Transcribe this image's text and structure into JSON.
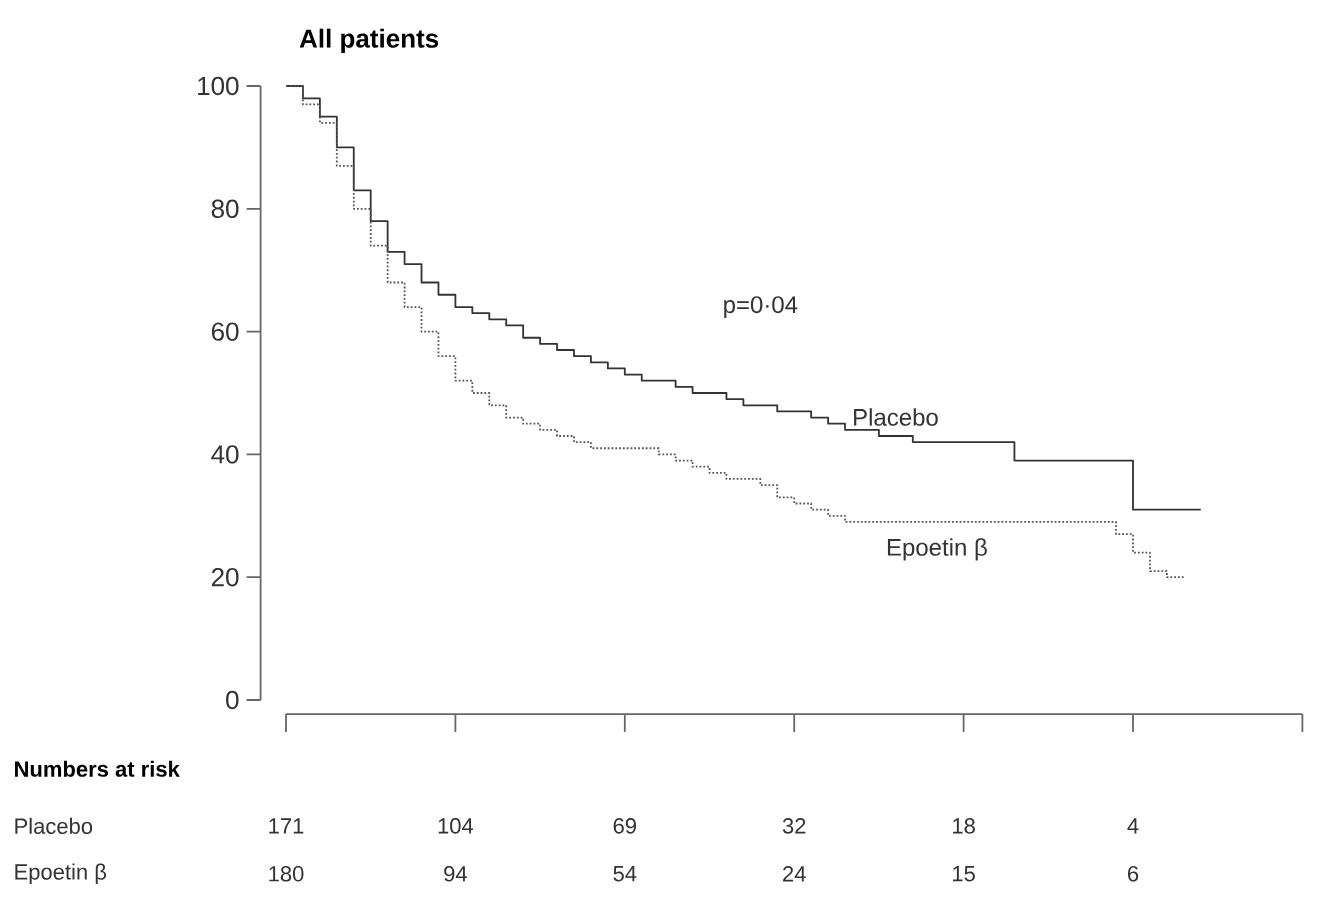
{
  "chart_data": {
    "type": "step",
    "title": "All patients",
    "categories": [
      null,
      null,
      null,
      null,
      null,
      null,
      null,
      null,
      null,
      null,
      null,
      null,
      null,
      null,
      null,
      null,
      null,
      null,
      null,
      null,
      null,
      null,
      null,
      null,
      null,
      null,
      null,
      null,
      null,
      null,
      null,
      null,
      null,
      null,
      null,
      null,
      null,
      null,
      null,
      null,
      null,
      null,
      null,
      null,
      null,
      null,
      null,
      null,
      null,
      null,
      null,
      null,
      null,
      null,
      null
    ],
    "ylim": [
      0,
      100
    ],
    "yticks": [
      0,
      20,
      40,
      60,
      80,
      100
    ],
    "series": [
      {
        "name": "Placebo",
        "color": "#333333",
        "line_style": "solid",
        "values": [
          100,
          98,
          95,
          90,
          83,
          78,
          73,
          71,
          68,
          66,
          64,
          63,
          62,
          61,
          59,
          58,
          57,
          56,
          55,
          54,
          53,
          52,
          52,
          51,
          50,
          50,
          49,
          48,
          48,
          47,
          47,
          46,
          45,
          44,
          44,
          43,
          43,
          42,
          42,
          42,
          42,
          42,
          42,
          39,
          39,
          39,
          39,
          39,
          39,
          39,
          31,
          31,
          31,
          31,
          31
        ]
      },
      {
        "name": "Epoetin β",
        "color": "#555555",
        "line_style": "dotted",
        "values": [
          100,
          97,
          94,
          87,
          80,
          74,
          68,
          64,
          60,
          56,
          52,
          50,
          48,
          46,
          45,
          44,
          43,
          42,
          41,
          41,
          41,
          41,
          40,
          39,
          38,
          37,
          36,
          36,
          35,
          33,
          32,
          31,
          30,
          29,
          29,
          29,
          29,
          29,
          29,
          29,
          29,
          29,
          29,
          29,
          29,
          29,
          29,
          29,
          29,
          27,
          24,
          21,
          20,
          20,
          null
        ]
      }
    ],
    "annotations": [
      "p=0·04",
      "Numbers at risk",
      "Placebo",
      "171",
      "104",
      "69",
      "32",
      "18",
      "4",
      "Epoetin β",
      "180",
      "94",
      "54",
      "24",
      "15",
      "6"
    ]
  }
}
